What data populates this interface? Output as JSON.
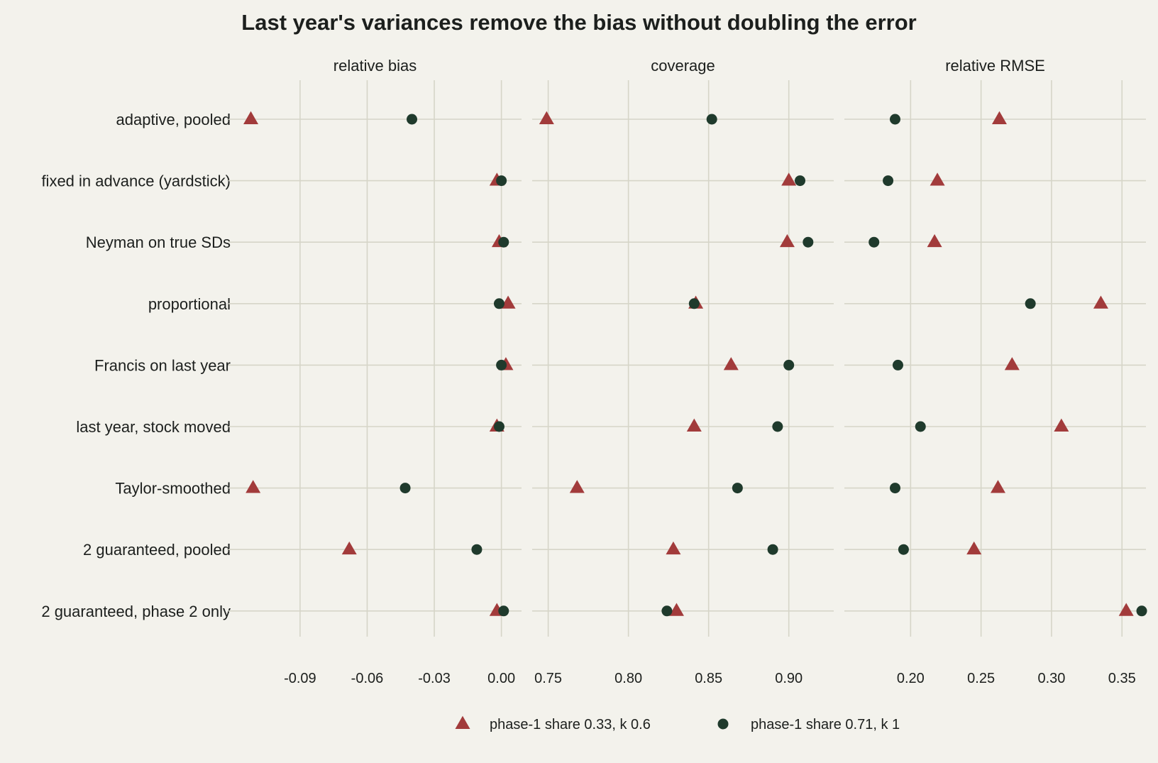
{
  "colors": {
    "background": "#f3f2ec",
    "grid": "#d6d5c8",
    "series_a": "#a23b3b",
    "series_b": "#1f3a2c",
    "text": "#1c1f1d"
  },
  "chart_data": {
    "type": "scatter",
    "title": "Last year's variances remove the bias without doubling the error",
    "categories": [
      "adaptive, pooled",
      "fixed in advance (yardstick)",
      "Neyman on true SDs",
      "proportional",
      "Francis on last year",
      "last year, stock moved",
      "Taylor-smoothed",
      "2 guaranteed, pooled",
      "2 guaranteed, phase 2 only"
    ],
    "legend": {
      "placement": "bottom",
      "entries": [
        {
          "label": "phase-1 share 0.33, k 0.6",
          "marker": "triangle",
          "color": "#a23b3b"
        },
        {
          "label": "phase-1 share 0.71, k 1",
          "marker": "circle",
          "color": "#1f3a2c"
        }
      ]
    },
    "grid": true,
    "panels": [
      {
        "title": "relative bias",
        "xlim": [
          -0.122,
          0.009
        ],
        "ticks": [
          -0.09,
          -0.06,
          -0.03,
          0.0
        ],
        "tick_labels": [
          "-0.09",
          "-0.06",
          "-0.03",
          "0.00"
        ],
        "series": [
          {
            "name": "phase-1 share 0.33, k 0.6",
            "values": [
              -0.112,
              -0.002,
              -0.001,
              0.003,
              0.002,
              -0.002,
              -0.111,
              -0.068,
              -0.002
            ]
          },
          {
            "name": "phase-1 share 0.71, k 1",
            "values": [
              -0.04,
              0.0,
              0.001,
              -0.001,
              0.0,
              -0.001,
              -0.043,
              -0.011,
              0.001
            ]
          }
        ]
      },
      {
        "title": "coverage",
        "xlim": [
          0.74,
          0.928
        ],
        "ticks": [
          0.75,
          0.8,
          0.85,
          0.9
        ],
        "tick_labels": [
          "0.75",
          "0.80",
          "0.85",
          "0.90"
        ],
        "series": [
          {
            "name": "phase-1 share 0.33, k 0.6",
            "values": [
              0.749,
              0.9,
              0.899,
              0.842,
              0.864,
              0.841,
              0.768,
              0.828,
              0.83
            ]
          },
          {
            "name": "phase-1 share 0.71, k 1",
            "values": [
              0.852,
              0.907,
              0.912,
              0.841,
              0.9,
              0.893,
              0.868,
              0.89,
              0.824
            ]
          }
        ]
      },
      {
        "title": "relative RMSE",
        "xlim": [
          0.153,
          0.367
        ],
        "ticks": [
          0.2,
          0.25,
          0.3,
          0.35
        ],
        "tick_labels": [
          "0.20",
          "0.25",
          "0.30",
          "0.35"
        ],
        "series": [
          {
            "name": "phase-1 share 0.33, k 0.6",
            "values": [
              0.263,
              0.219,
              0.217,
              0.335,
              0.272,
              0.307,
              0.262,
              0.245,
              0.353
            ]
          },
          {
            "name": "phase-1 share 0.71, k 1",
            "values": [
              0.189,
              0.184,
              0.174,
              0.285,
              0.191,
              0.207,
              0.189,
              0.195,
              0.364
            ]
          }
        ]
      }
    ]
  }
}
